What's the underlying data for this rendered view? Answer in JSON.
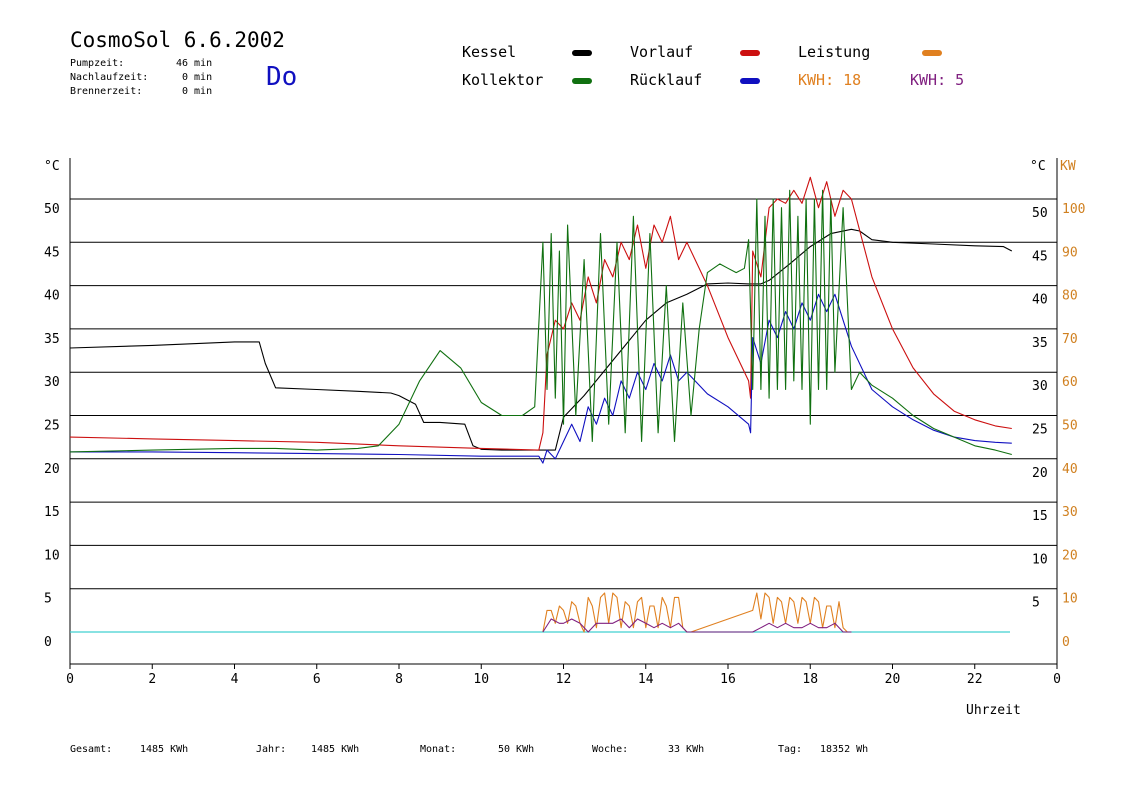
{
  "header": {
    "title": "CosmoSol 6.6.2002",
    "day": "Do",
    "stats": [
      {
        "label": "Pumpzeit:",
        "value": "46 min"
      },
      {
        "label": "Nachlaufzeit:",
        "value": "0 min"
      },
      {
        "label": "Brennerzeit:",
        "value": "0 min"
      }
    ]
  },
  "legend": {
    "kessel": "Kessel",
    "vorlauf": "Vorlauf",
    "leistung": "Leistung",
    "kollektor": "Kollektor",
    "ruecklauf": "Rücklauf",
    "kwh1": "KWH: 18",
    "kwh2": "KWH: 5"
  },
  "footer": [
    {
      "label": "Gesamt:",
      "value": "1485 KWh"
    },
    {
      "label": "Jahr:",
      "value": "1485 KWh"
    },
    {
      "label": "Monat:",
      "value": "50 KWh"
    },
    {
      "label": "Woche:",
      "value": "33 KWh"
    },
    {
      "label": "Tag:",
      "value": "18352 Wh"
    }
  ],
  "chart_data": {
    "type": "line",
    "xlabel": "Uhrzeit",
    "ylabel_left": "°C",
    "ylabel_right_temp": "°C",
    "ylabel_right_power": "KW",
    "xlim": [
      0,
      24
    ],
    "ylim": [
      -2.5,
      55
    ],
    "x_ticks": [
      "0",
      "2",
      "4",
      "6",
      "8",
      "10",
      "12",
      "14",
      "16",
      "18",
      "20",
      "22",
      "0"
    ],
    "y_ticks_left": [
      0,
      5,
      10,
      15,
      20,
      25,
      30,
      35,
      40,
      45,
      50
    ],
    "y_ticks_right_temp": [
      5,
      10,
      15,
      20,
      25,
      30,
      35,
      40,
      45,
      50
    ],
    "y_ticks_right_power": [
      0,
      10,
      20,
      30,
      40,
      50,
      60,
      70,
      80,
      90,
      100
    ],
    "grid": true,
    "colors": {
      "kessel": "#000000",
      "vorlauf": "#cc1010",
      "kollektor": "#107010",
      "ruecklauf": "#1010c0",
      "leistung": "#e08020",
      "kwh2": "#802080",
      "baseline": "#40d0d0",
      "axis_power": "#d08020"
    },
    "series": [
      {
        "name": "Kessel",
        "x": [
          0,
          2,
          4,
          4.6,
          4.75,
          5,
          6,
          7,
          7.8,
          8,
          8.4,
          8.6,
          9,
          9.6,
          9.8,
          10,
          10.5,
          11,
          11.5,
          11.8,
          12,
          12.5,
          13,
          13.5,
          14,
          14.5,
          15,
          15.5,
          16,
          16.5,
          16.8,
          17,
          17.5,
          18,
          18.5,
          19,
          19.2,
          19.5,
          20,
          21,
          22,
          22.7,
          22.9
        ],
        "y": [
          32.8,
          33.1,
          33.5,
          33.5,
          31,
          28.2,
          28,
          27.8,
          27.6,
          27.3,
          26.3,
          24.2,
          24.2,
          24,
          21.5,
          21.1,
          21,
          21,
          21,
          21,
          24.8,
          27.3,
          30.2,
          33.1,
          36,
          38,
          39,
          40.2,
          40.3,
          40.2,
          40.2,
          40.6,
          42.5,
          44.5,
          46,
          46.5,
          46.3,
          45.3,
          45,
          44.8,
          44.6,
          44.5,
          44.0
        ]
      },
      {
        "name": "Vorlauf",
        "x": [
          0,
          2,
          4,
          6,
          8,
          10,
          11.4,
          11.5,
          11.6,
          11.8,
          12,
          12.2,
          12.4,
          12.6,
          12.8,
          13,
          13.2,
          13.4,
          13.6,
          13.8,
          14,
          14.2,
          14.4,
          14.6,
          14.8,
          15,
          15.5,
          16,
          16.5,
          16.55,
          16.6,
          16.8,
          17,
          17.2,
          17.4,
          17.6,
          17.8,
          18,
          18.2,
          18.4,
          18.6,
          18.8,
          19,
          19.5,
          20,
          20.5,
          21,
          21.5,
          22,
          22.5,
          22.9
        ],
        "y": [
          22.5,
          22.3,
          22.1,
          21.9,
          21.5,
          21.2,
          21,
          23,
          32,
          36,
          35,
          38,
          36,
          41,
          38,
          43,
          41,
          45,
          43,
          47,
          42,
          47,
          45,
          48,
          43,
          45,
          40,
          34,
          29,
          27,
          44,
          41,
          49,
          50,
          49.5,
          51,
          49.5,
          52.5,
          49,
          52,
          48,
          51,
          50,
          41,
          35,
          30.5,
          27.5,
          25.5,
          24.5,
          23.8,
          23.5
        ]
      },
      {
        "name": "Rücklauf",
        "x": [
          0,
          2,
          4,
          6,
          8,
          10,
          11.4,
          11.5,
          11.6,
          11.8,
          12,
          12.2,
          12.4,
          12.6,
          12.8,
          13,
          13.2,
          13.4,
          13.6,
          13.8,
          14,
          14.2,
          14.4,
          14.6,
          14.8,
          15,
          15.5,
          16,
          16.5,
          16.55,
          16.6,
          16.8,
          17,
          17.2,
          17.4,
          17.6,
          17.8,
          18,
          18.2,
          18.4,
          18.6,
          18.8,
          19,
          19.5,
          20,
          20.5,
          21,
          21.5,
          22,
          22.5,
          22.9
        ],
        "y": [
          20.8,
          20.8,
          20.7,
          20.6,
          20.5,
          20.3,
          20.3,
          19.5,
          21,
          20,
          22,
          24,
          22,
          26,
          24,
          27,
          25,
          29,
          27,
          30,
          28,
          31,
          29,
          32,
          29,
          30,
          27.5,
          26,
          24,
          23,
          34,
          31,
          36,
          34,
          37,
          35,
          38,
          36,
          39,
          37,
          39,
          36,
          33,
          28,
          26,
          24.5,
          23.3,
          22.5,
          22.1,
          21.9,
          21.8
        ]
      },
      {
        "name": "Kollektor",
        "x": [
          0,
          2,
          4,
          5,
          6,
          7,
          7.5,
          8,
          8.5,
          9,
          9.5,
          10,
          10.5,
          11,
          11.3,
          11.5,
          11.6,
          11.7,
          11.8,
          11.9,
          12,
          12.1,
          12.3,
          12.5,
          12.7,
          12.9,
          13.1,
          13.3,
          13.5,
          13.7,
          13.9,
          14.1,
          14.3,
          14.5,
          14.7,
          14.9,
          15.1,
          15.3,
          15.5,
          15.8,
          16,
          16.2,
          16.4,
          16.5,
          16.6,
          16.7,
          16.8,
          16.9,
          17,
          17.1,
          17.2,
          17.3,
          17.4,
          17.5,
          17.6,
          17.7,
          17.8,
          17.9,
          18,
          18.1,
          18.2,
          18.3,
          18.4,
          18.5,
          18.6,
          18.8,
          19,
          19.2,
          19.5,
          20,
          20.5,
          21,
          21.5,
          22,
          22.5,
          22.9
        ],
        "y": [
          20.8,
          21,
          21.2,
          21.2,
          21,
          21.2,
          21.5,
          24,
          29,
          32.5,
          30.5,
          26.5,
          25,
          25,
          26,
          45,
          28,
          46,
          27,
          44,
          24,
          47,
          25,
          43,
          22,
          46,
          24,
          45,
          23,
          48,
          22,
          46,
          23,
          40,
          22,
          38,
          25,
          35,
          41.5,
          42.5,
          42,
          41.5,
          42,
          45.3,
          28,
          50,
          28,
          48,
          27,
          50,
          28,
          49,
          28,
          51,
          29,
          48,
          28,
          50,
          24,
          50,
          28,
          51,
          28,
          50,
          30,
          49,
          28,
          30,
          28.5,
          27,
          25,
          23.5,
          22.5,
          21.5,
          21,
          20.5
        ]
      },
      {
        "name": "Leistung",
        "axis": "power",
        "x": [
          11.5,
          11.6,
          11.7,
          11.8,
          11.9,
          12,
          12.1,
          12.2,
          12.3,
          12.4,
          12.5,
          12.6,
          12.7,
          12.8,
          12.9,
          13,
          13.1,
          13.2,
          13.3,
          13.4,
          13.5,
          13.6,
          13.7,
          13.8,
          13.9,
          14,
          14.1,
          14.2,
          14.3,
          14.4,
          14.5,
          14.6,
          14.7,
          14.8,
          14.9,
          15,
          15.1,
          16.6,
          16.7,
          16.8,
          16.9,
          17,
          17.1,
          17.2,
          17.3,
          17.4,
          17.5,
          17.6,
          17.7,
          17.8,
          17.9,
          18,
          18.1,
          18.2,
          18.3,
          18.4,
          18.5,
          18.6,
          18.7,
          18.8,
          18.9,
          19
        ],
        "y": [
          0,
          5,
          5,
          2,
          6,
          5,
          2,
          7,
          6,
          2,
          0,
          8,
          6,
          1,
          8,
          9,
          2,
          9,
          8,
          1,
          7,
          6,
          1,
          7,
          8,
          1,
          6,
          6,
          1,
          8,
          6,
          1,
          8,
          8,
          1,
          0,
          0,
          5,
          9,
          3,
          9,
          8,
          2,
          8,
          7,
          2,
          8,
          7,
          2,
          8,
          7,
          2,
          8,
          7,
          1,
          6,
          6,
          1,
          7,
          1,
          0,
          0
        ]
      },
      {
        "name": "KWH 5",
        "axis": "power",
        "x": [
          11.5,
          11.7,
          11.9,
          12,
          12.2,
          12.4,
          12.6,
          12.8,
          13,
          13.2,
          13.4,
          13.6,
          13.8,
          14,
          14.2,
          14.4,
          14.6,
          14.8,
          15,
          16.6,
          16.8,
          17,
          17.2,
          17.4,
          17.6,
          17.8,
          18,
          18.2,
          18.4,
          18.6,
          18.8,
          19
        ],
        "y": [
          0,
          3,
          2,
          2,
          3,
          2,
          0,
          2,
          2,
          2,
          3,
          1,
          3,
          2,
          1,
          2,
          1,
          2,
          0,
          0,
          1,
          2,
          1,
          2,
          1,
          1,
          2,
          1,
          1,
          2,
          0,
          0
        ]
      }
    ]
  }
}
